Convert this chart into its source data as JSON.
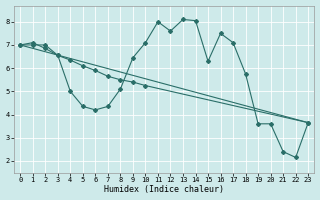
{
  "xlabel": "Humidex (Indice chaleur)",
  "bg_color": "#ceeaea",
  "line_color": "#2a6e68",
  "grid_color": "#f5f5f5",
  "xlim": [
    -0.5,
    23.5
  ],
  "ylim": [
    1.5,
    8.7
  ],
  "xticks": [
    0,
    1,
    2,
    3,
    4,
    5,
    6,
    7,
    8,
    9,
    10,
    11,
    12,
    13,
    14,
    15,
    16,
    17,
    18,
    19,
    20,
    21,
    22,
    23
  ],
  "yticks": [
    2,
    3,
    4,
    5,
    6,
    7,
    8
  ],
  "line1_x": [
    0,
    1,
    2,
    3,
    4,
    5,
    6,
    7,
    8,
    9,
    10,
    11,
    12,
    13,
    14,
    15,
    16,
    17,
    18,
    19,
    20,
    21,
    22,
    23
  ],
  "line1_y": [
    7.0,
    7.1,
    6.85,
    6.55,
    5.0,
    4.35,
    4.2,
    4.35,
    5.1,
    6.45,
    7.1,
    8.0,
    7.6,
    8.1,
    8.05,
    6.3,
    7.5,
    7.1,
    5.75,
    3.6,
    3.6,
    2.4,
    2.15,
    3.65
  ],
  "line2_x": [
    0,
    1,
    2,
    3,
    4,
    5,
    6,
    7,
    8,
    9,
    10,
    23
  ],
  "line2_y": [
    7.0,
    7.0,
    7.0,
    6.55,
    6.35,
    6.1,
    5.9,
    5.65,
    5.5,
    5.4,
    5.25,
    3.65
  ],
  "line3_x": [
    0,
    23
  ],
  "line3_y": [
    7.0,
    3.65
  ]
}
